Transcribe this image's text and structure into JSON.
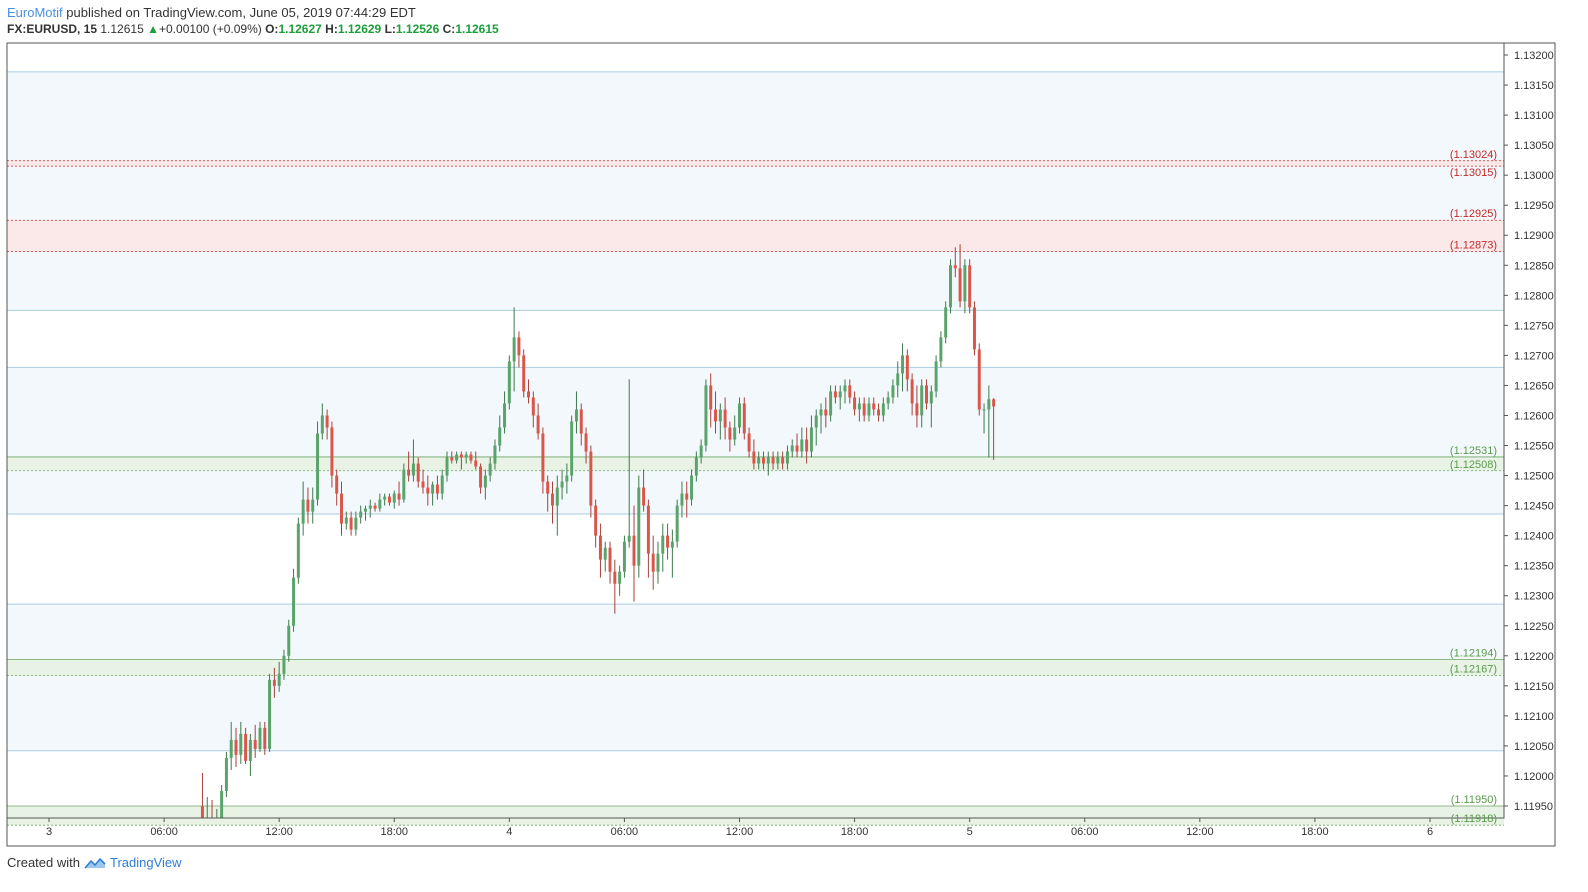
{
  "header": {
    "author": "EuroMotif",
    "published": "published on TradingView.com, June 05, 2019 07:44:29 EDT",
    "symbol": "FX:EURUSD, 15",
    "last": "1.12615",
    "change": "+0.00100 (+0.09%)",
    "o_label": "O:",
    "o": "1.12627",
    "h_label": "H:",
    "h": "1.12629",
    "l_label": "L:",
    "l": "1.12526",
    "c_label": "C:",
    "c": "1.12615"
  },
  "footer": {
    "created_with": "Created with",
    "brand": "TradingView"
  },
  "colors": {
    "up": "#5aa36a",
    "down": "#d9574a",
    "band_blue": "#f3f8fc",
    "line_blue": "#a9cde0",
    "band_red": "#fbe9e9",
    "line_red": "#c62828",
    "band_green": "#e8f3e6",
    "line_green": "#6da365",
    "label_red": "#c62828",
    "label_green": "#5b9a4d"
  },
  "chart_data": {
    "type": "candlestick",
    "symbol": "FX:EURUSD",
    "interval": "15",
    "ylim": [
      1.1193,
      1.1322
    ],
    "y_ticks": [
      "1.13200",
      "1.13150",
      "1.13100",
      "1.13050",
      "1.13000",
      "1.12950",
      "1.12900",
      "1.12850",
      "1.12800",
      "1.12750",
      "1.12700",
      "1.12650",
      "1.12600",
      "1.12550",
      "1.12500",
      "1.12450",
      "1.12400",
      "1.12350",
      "1.12300",
      "1.12250",
      "1.12200",
      "1.12150",
      "1.12100",
      "1.12050",
      "1.12000",
      "1.11950"
    ],
    "x_ticks": [
      {
        "label": "3",
        "h": 0
      },
      {
        "label": "06:00",
        "h": 6
      },
      {
        "label": "12:00",
        "h": 12
      },
      {
        "label": "18:00",
        "h": 18
      },
      {
        "label": "4",
        "h": 24
      },
      {
        "label": "06:00",
        "h": 30
      },
      {
        "label": "12:00",
        "h": 36
      },
      {
        "label": "18:00",
        "h": 42
      },
      {
        "label": "5",
        "h": 48
      },
      {
        "label": "06:00",
        "h": 54
      },
      {
        "label": "12:00",
        "h": 60
      },
      {
        "label": "18:00",
        "h": 66
      },
      {
        "label": "6",
        "h": 72
      }
    ],
    "zones": [
      {
        "kind": "red",
        "top": 1.13024,
        "bottom": 1.13015,
        "top_label": "(1.13024)",
        "bottom_label": "(1.13015)"
      },
      {
        "kind": "red",
        "top": 1.12925,
        "bottom": 1.12873,
        "top_label": "(1.12925)",
        "bottom_label": "(1.12873)"
      },
      {
        "kind": "green",
        "top": 1.12531,
        "bottom": 1.12508,
        "top_label": "(1.12531)",
        "bottom_label": "(1.12508)"
      },
      {
        "kind": "green",
        "top": 1.12194,
        "bottom": 1.12167,
        "top_label": "(1.12194)",
        "bottom_label": "(1.12167)"
      },
      {
        "kind": "green",
        "top": 1.1195,
        "bottom": 1.11918,
        "top_label": "(1.11950)",
        "bottom_label": "(1.11918)"
      }
    ],
    "blue_levels": [
      1.13172,
      1.12775,
      1.1268,
      1.12436,
      1.12286,
      1.12042
    ],
    "candles_start_hour": 8.0,
    "candle_interval_hours": 0.25,
    "candles": [
      [
        1.1195,
        1.12005,
        1.11915,
        1.1192
      ],
      [
        1.1192,
        1.11965,
        1.1189,
        1.1193
      ],
      [
        1.1193,
        1.1196,
        1.119,
        1.11915
      ],
      [
        1.11915,
        1.11945,
        1.1188,
        1.1193
      ],
      [
        1.1193,
        1.11985,
        1.1192,
        1.11975
      ],
      [
        1.11975,
        1.1204,
        1.11965,
        1.1203
      ],
      [
        1.1203,
        1.1209,
        1.1201,
        1.1206
      ],
      [
        1.1206,
        1.1208,
        1.12015,
        1.12035
      ],
      [
        1.12035,
        1.1209,
        1.1202,
        1.1207
      ],
      [
        1.1207,
        1.1208,
        1.1202,
        1.12025
      ],
      [
        1.12025,
        1.1207,
        1.12,
        1.1206
      ],
      [
        1.1206,
        1.12085,
        1.1203,
        1.12045
      ],
      [
        1.12045,
        1.1209,
        1.1204,
        1.1208
      ],
      [
        1.1208,
        1.1209,
        1.12035,
        1.12045
      ],
      [
        1.12045,
        1.1217,
        1.1204,
        1.1216
      ],
      [
        1.1216,
        1.1218,
        1.1213,
        1.1215
      ],
      [
        1.1215,
        1.1219,
        1.1214,
        1.1217
      ],
      [
        1.1217,
        1.1221,
        1.1216,
        1.122
      ],
      [
        1.122,
        1.1226,
        1.1219,
        1.1225
      ],
      [
        1.1225,
        1.12345,
        1.1224,
        1.1233
      ],
      [
        1.1233,
        1.1243,
        1.1232,
        1.1242
      ],
      [
        1.1242,
        1.1249,
        1.124,
        1.1246
      ],
      [
        1.1246,
        1.1248,
        1.1242,
        1.1244
      ],
      [
        1.1244,
        1.1248,
        1.1242,
        1.1246
      ],
      [
        1.1246,
        1.1259,
        1.1245,
        1.1257
      ],
      [
        1.1257,
        1.1262,
        1.1256,
        1.126
      ],
      [
        1.126,
        1.1261,
        1.1256,
        1.1258
      ],
      [
        1.1258,
        1.1259,
        1.1248,
        1.125
      ],
      [
        1.125,
        1.1251,
        1.1245,
        1.1247
      ],
      [
        1.1247,
        1.1249,
        1.124,
        1.1242
      ],
      [
        1.1242,
        1.1244,
        1.1241,
        1.1243
      ],
      [
        1.1243,
        1.1244,
        1.124,
        1.1241
      ],
      [
        1.1241,
        1.1244,
        1.124,
        1.1243
      ],
      [
        1.1243,
        1.1245,
        1.1242,
        1.1244
      ],
      [
        1.1244,
        1.1245,
        1.12425,
        1.12445
      ],
      [
        1.12445,
        1.1246,
        1.1243,
        1.1245
      ],
      [
        1.1245,
        1.12455,
        1.1244,
        1.12445
      ],
      [
        1.12445,
        1.1247,
        1.1244,
        1.1246
      ],
      [
        1.1246,
        1.1247,
        1.1245,
        1.12465
      ],
      [
        1.12465,
        1.1247,
        1.1245,
        1.12455
      ],
      [
        1.12455,
        1.12475,
        1.12445,
        1.1247
      ],
      [
        1.1247,
        1.1249,
        1.1245,
        1.1246
      ],
      [
        1.1246,
        1.1252,
        1.12455,
        1.1251
      ],
      [
        1.1251,
        1.1254,
        1.1249,
        1.125
      ],
      [
        1.125,
        1.1256,
        1.1249,
        1.1252
      ],
      [
        1.1252,
        1.1253,
        1.1248,
        1.1249
      ],
      [
        1.1249,
        1.1251,
        1.1247,
        1.1248
      ],
      [
        1.1248,
        1.125,
        1.1245,
        1.1247
      ],
      [
        1.1247,
        1.1249,
        1.1245,
        1.12485
      ],
      [
        1.12485,
        1.125,
        1.1246,
        1.1247
      ],
      [
        1.1247,
        1.1251,
        1.1246,
        1.125
      ],
      [
        1.125,
        1.1254,
        1.1249,
        1.1253
      ],
      [
        1.1253,
        1.1254,
        1.1252,
        1.12525
      ],
      [
        1.12525,
        1.1254,
        1.1252,
        1.12535
      ],
      [
        1.12535,
        1.1254,
        1.1251,
        1.1253
      ],
      [
        1.1253,
        1.1254,
        1.1252,
        1.12535
      ],
      [
        1.12535,
        1.1254,
        1.1252,
        1.12525
      ],
      [
        1.12525,
        1.1254,
        1.1251,
        1.12515
      ],
      [
        1.12515,
        1.1252,
        1.1247,
        1.1248
      ],
      [
        1.1248,
        1.1251,
        1.1246,
        1.125
      ],
      [
        1.125,
        1.1253,
        1.1249,
        1.1252
      ],
      [
        1.1252,
        1.1256,
        1.1251,
        1.1255
      ],
      [
        1.1255,
        1.126,
        1.1254,
        1.1258
      ],
      [
        1.1258,
        1.1264,
        1.1257,
        1.1262
      ],
      [
        1.1262,
        1.127,
        1.1261,
        1.1269
      ],
      [
        1.1269,
        1.1278,
        1.1264,
        1.1273
      ],
      [
        1.1273,
        1.1274,
        1.1268,
        1.127
      ],
      [
        1.127,
        1.1271,
        1.1263,
        1.1264
      ],
      [
        1.1264,
        1.1266,
        1.1262,
        1.1263
      ],
      [
        1.1263,
        1.1264,
        1.1258,
        1.126
      ],
      [
        1.126,
        1.1262,
        1.1256,
        1.1257
      ],
      [
        1.1257,
        1.1258,
        1.1247,
        1.1249
      ],
      [
        1.1249,
        1.125,
        1.1244,
        1.1247
      ],
      [
        1.1247,
        1.1249,
        1.1242,
        1.1245
      ],
      [
        1.1245,
        1.125,
        1.124,
        1.1248
      ],
      [
        1.1248,
        1.1251,
        1.1246,
        1.1249
      ],
      [
        1.1249,
        1.1252,
        1.1247,
        1.125
      ],
      [
        1.125,
        1.126,
        1.1249,
        1.1259
      ],
      [
        1.1259,
        1.1264,
        1.1257,
        1.1261
      ],
      [
        1.1261,
        1.1262,
        1.1255,
        1.1257
      ],
      [
        1.1257,
        1.1258,
        1.1252,
        1.1254
      ],
      [
        1.1254,
        1.1255,
        1.1243,
        1.1245
      ],
      [
        1.1245,
        1.1246,
        1.1238,
        1.124
      ],
      [
        1.124,
        1.1242,
        1.1233,
        1.1236
      ],
      [
        1.1236,
        1.1239,
        1.1234,
        1.1238
      ],
      [
        1.1238,
        1.1239,
        1.1232,
        1.1234
      ],
      [
        1.1234,
        1.1236,
        1.1227,
        1.1232
      ],
      [
        1.1232,
        1.1235,
        1.123,
        1.1234
      ],
      [
        1.1234,
        1.124,
        1.1233,
        1.1239
      ],
      [
        1.1239,
        1.1266,
        1.1238,
        1.124
      ],
      [
        1.124,
        1.1245,
        1.1229,
        1.1235
      ],
      [
        1.1235,
        1.125,
        1.1233,
        1.1248
      ],
      [
        1.1248,
        1.1251,
        1.1244,
        1.1245
      ],
      [
        1.1245,
        1.1246,
        1.1233,
        1.1237
      ],
      [
        1.1237,
        1.124,
        1.1231,
        1.1234
      ],
      [
        1.1234,
        1.1239,
        1.1232,
        1.1237
      ],
      [
        1.1237,
        1.1242,
        1.1234,
        1.124
      ],
      [
        1.124,
        1.1242,
        1.1236,
        1.1238
      ],
      [
        1.1238,
        1.1241,
        1.1233,
        1.1239
      ],
      [
        1.1239,
        1.1246,
        1.1238,
        1.1245
      ],
      [
        1.1245,
        1.1249,
        1.1243,
        1.1247
      ],
      [
        1.1247,
        1.1249,
        1.1243,
        1.1246
      ],
      [
        1.1246,
        1.1251,
        1.1245,
        1.125
      ],
      [
        1.125,
        1.1254,
        1.1249,
        1.1253
      ],
      [
        1.1253,
        1.1256,
        1.1252,
        1.1255
      ],
      [
        1.1255,
        1.1266,
        1.1254,
        1.1265
      ],
      [
        1.1265,
        1.1267,
        1.1258,
        1.1261
      ],
      [
        1.1261,
        1.1264,
        1.1257,
        1.1259
      ],
      [
        1.1259,
        1.1262,
        1.1256,
        1.1261
      ],
      [
        1.1261,
        1.1263,
        1.1256,
        1.1258
      ],
      [
        1.1258,
        1.1259,
        1.1254,
        1.1256
      ],
      [
        1.1256,
        1.126,
        1.1255,
        1.1258
      ],
      [
        1.1258,
        1.1263,
        1.1257,
        1.1262
      ],
      [
        1.1262,
        1.1263,
        1.1256,
        1.1257
      ],
      [
        1.1257,
        1.1258,
        1.1253,
        1.1254
      ],
      [
        1.1254,
        1.1256,
        1.1251,
        1.1252
      ],
      [
        1.1252,
        1.1254,
        1.1251,
        1.1253
      ],
      [
        1.1253,
        1.1254,
        1.1251,
        1.1252
      ],
      [
        1.1252,
        1.1254,
        1.125,
        1.1253
      ],
      [
        1.1253,
        1.1254,
        1.1251,
        1.1252
      ],
      [
        1.1252,
        1.1254,
        1.1251,
        1.1253
      ],
      [
        1.1253,
        1.1254,
        1.1251,
        1.1252
      ],
      [
        1.1252,
        1.1255,
        1.1251,
        1.1254
      ],
      [
        1.1254,
        1.1256,
        1.1253,
        1.1255
      ],
      [
        1.1255,
        1.1257,
        1.1253,
        1.1254
      ],
      [
        1.1254,
        1.1258,
        1.1253,
        1.1256
      ],
      [
        1.1256,
        1.1258,
        1.1252,
        1.1254
      ],
      [
        1.1254,
        1.126,
        1.1253,
        1.1258
      ],
      [
        1.1258,
        1.1261,
        1.1255,
        1.126
      ],
      [
        1.126,
        1.1262,
        1.1257,
        1.1261
      ],
      [
        1.1261,
        1.1263,
        1.1258,
        1.126
      ],
      [
        1.126,
        1.1265,
        1.1259,
        1.1264
      ],
      [
        1.1264,
        1.1265,
        1.1262,
        1.1263
      ],
      [
        1.1263,
        1.1265,
        1.1261,
        1.1264
      ],
      [
        1.1264,
        1.1266,
        1.1262,
        1.1265
      ],
      [
        1.1265,
        1.1266,
        1.1262,
        1.1263
      ],
      [
        1.1263,
        1.1264,
        1.126,
        1.1261
      ],
      [
        1.1261,
        1.1263,
        1.1259,
        1.1262
      ],
      [
        1.1262,
        1.1263,
        1.1259,
        1.126
      ],
      [
        1.126,
        1.1263,
        1.1259,
        1.1262
      ],
      [
        1.1262,
        1.1263,
        1.126,
        1.1261
      ],
      [
        1.1261,
        1.1262,
        1.1259,
        1.126
      ],
      [
        1.126,
        1.1263,
        1.1259,
        1.1262
      ],
      [
        1.1262,
        1.1264,
        1.1261,
        1.1263
      ],
      [
        1.1263,
        1.1266,
        1.1262,
        1.1265
      ],
      [
        1.1265,
        1.1269,
        1.1263,
        1.1267
      ],
      [
        1.1267,
        1.1272,
        1.1264,
        1.127
      ],
      [
        1.127,
        1.1271,
        1.1264,
        1.1266
      ],
      [
        1.1266,
        1.1267,
        1.126,
        1.1262
      ],
      [
        1.1262,
        1.1265,
        1.1258,
        1.126
      ],
      [
        1.126,
        1.1266,
        1.1258,
        1.1265
      ],
      [
        1.1265,
        1.1266,
        1.1261,
        1.1262
      ],
      [
        1.1262,
        1.1265,
        1.1258,
        1.1264
      ],
      [
        1.1264,
        1.127,
        1.1263,
        1.1269
      ],
      [
        1.1269,
        1.1274,
        1.1268,
        1.1273
      ],
      [
        1.1273,
        1.1279,
        1.1272,
        1.1278
      ],
      [
        1.1278,
        1.1286,
        1.1277,
        1.1285
      ],
      [
        1.1285,
        1.1288,
        1.1283,
        1.12845
      ],
      [
        1.12845,
        1.12885,
        1.1278,
        1.1279
      ],
      [
        1.1279,
        1.1286,
        1.1277,
        1.1285
      ],
      [
        1.1285,
        1.1286,
        1.1277,
        1.1278
      ],
      [
        1.1278,
        1.1279,
        1.127,
        1.1271
      ],
      [
        1.1271,
        1.1272,
        1.126,
        1.1261
      ],
      [
        1.1261,
        1.1262,
        1.1257,
        1.1261
      ],
      [
        1.1261,
        1.1265,
        1.1253,
        1.12627
      ],
      [
        1.12627,
        1.12629,
        1.12526,
        1.12615
      ]
    ]
  }
}
